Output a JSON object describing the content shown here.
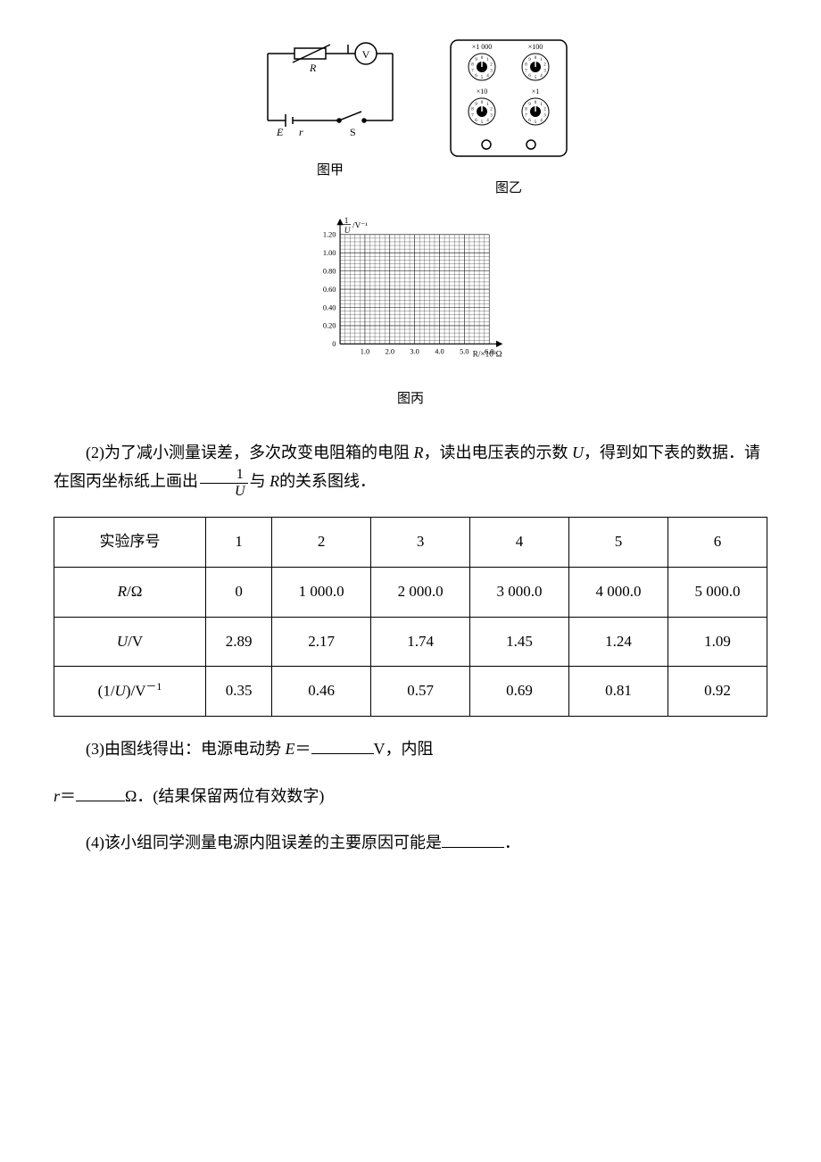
{
  "figures": {
    "circuit": {
      "label": "图甲",
      "voltmeter_symbol": "V",
      "resistor_label": "R",
      "emf_label": "E",
      "internal_r_label": "r",
      "switch_label": "S"
    },
    "resistor_box": {
      "label": "图乙",
      "dials": [
        "×1 000",
        "×100",
        "×10",
        "×1"
      ],
      "dial_numbers": [
        0,
        1,
        2,
        3,
        4,
        5,
        6,
        7,
        8,
        9
      ]
    },
    "graph": {
      "label": "图丙",
      "ylabel_num": "1",
      "ylabel_den": "U",
      "ylabel_unit": "/V⁻¹",
      "xlabel": "R/×10³Ω",
      "yticks": [
        "0",
        "0.20",
        "0.40",
        "0.60",
        "0.80",
        "1.00",
        "1.20"
      ],
      "xticks": [
        "0",
        "1.0",
        "2.0",
        "3.0",
        "4.0",
        "5.0",
        "6.0"
      ],
      "ylim": [
        0,
        1.2
      ],
      "xlim": [
        0,
        6.0
      ],
      "grid_color": "#000",
      "background_color": "#fff"
    }
  },
  "q2": {
    "prefix": "(2)为了减小测量误差，多次改变电阻箱的电阻",
    "r_var": "R",
    "mid1": "，读出电压表的示数",
    "u_var": "U",
    "mid2": "，得到如下表的数据．请在图丙坐标纸上画出",
    "frac_num": "1",
    "frac_den": "U",
    "mid3": "与",
    "r_var2": "R",
    "suffix": "的关系图线．"
  },
  "table": {
    "headers": [
      "实验序号",
      "1",
      "2",
      "3",
      "4",
      "5",
      "6"
    ],
    "rows": [
      {
        "label": "R/Ω",
        "values": [
          "0",
          "1 000.0",
          "2 000.0",
          "3 000.0",
          "4 000.0",
          "5 000.0"
        ]
      },
      {
        "label": "U/V",
        "values": [
          "2.89",
          "2.17",
          "1.74",
          "1.45",
          "1.24",
          "1.09"
        ]
      },
      {
        "label": "(1/U)/V⁻¹",
        "values": [
          "0.35",
          "0.46",
          "0.57",
          "0.69",
          "0.81",
          "0.92"
        ]
      }
    ]
  },
  "q3": {
    "prefix": "(3)由图线得出：电源电动势",
    "e_var": "E",
    "eq1": "＝",
    "unit1": "V，内阻",
    "r_var": "r",
    "eq2": "＝",
    "unit2": "Ω．(结果保留两位有效数字)"
  },
  "q4": {
    "text": "(4)该小组同学测量电源内阻误差的主要原因可能是",
    "suffix": "．"
  }
}
